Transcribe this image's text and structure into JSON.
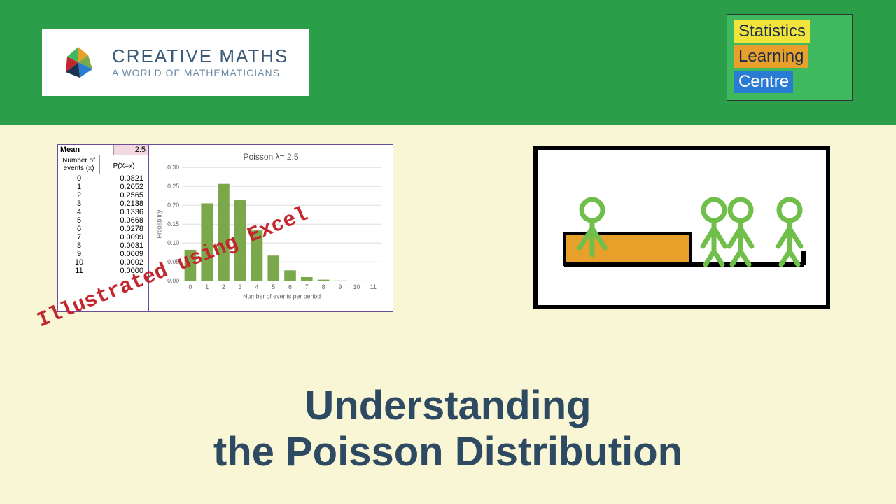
{
  "colors": {
    "header_bg": "#2b9e4a",
    "body_bg": "#f8f6d4",
    "slc_bg": "#3fb95e",
    "slc_statistics_bg": "#f2e33a",
    "slc_learning_bg": "#e9a02a",
    "slc_centre_bg": "#2a7bd4",
    "slc_text": "#18324f",
    "logo_title": "#3a5a78",
    "logo_sub": "#6a8aa6",
    "excel_overlay": "#c1272d",
    "title_color": "#2e4a63",
    "bar_color": "#7aa84a",
    "mean_val_bg": "#f3d9e0",
    "illus_person": "#6fbf4a",
    "illus_desk": "#e9a02a"
  },
  "logo": {
    "title": "CREATIVE MATHS",
    "subtitle": "A WORLD OF MATHEMATICIANS"
  },
  "slc": {
    "line1": "Statistics",
    "line2": "Learning",
    "line3": "Centre"
  },
  "excel": {
    "mean_label": "Mean",
    "mean_value": "2.5",
    "col1_header": "Number of events (x)",
    "col2_header": "P(X=x)",
    "rows": [
      {
        "x": "0",
        "p": "0.0821"
      },
      {
        "x": "1",
        "p": "0.2052"
      },
      {
        "x": "2",
        "p": "0.2565"
      },
      {
        "x": "3",
        "p": "0.2138"
      },
      {
        "x": "4",
        "p": "0.1336"
      },
      {
        "x": "5",
        "p": "0.0668"
      },
      {
        "x": "6",
        "p": "0.0278"
      },
      {
        "x": "7",
        "p": "0.0099"
      },
      {
        "x": "8",
        "p": "0.0031"
      },
      {
        "x": "9",
        "p": "0.0009"
      },
      {
        "x": "10",
        "p": "0.0002"
      },
      {
        "x": "11",
        "p": "0.0000"
      }
    ]
  },
  "chart": {
    "title": "Poisson λ= 2.5",
    "ylabel": "Probability",
    "xlabel": "Number of events per period",
    "ylim_max": 0.3,
    "ytick_step": 0.05,
    "categories": [
      "0",
      "1",
      "2",
      "3",
      "4",
      "5",
      "6",
      "7",
      "8",
      "9",
      "10",
      "11"
    ],
    "values": [
      0.0821,
      0.2052,
      0.2565,
      0.2138,
      0.1336,
      0.0668,
      0.0278,
      0.0099,
      0.0031,
      0.0009,
      0.0002,
      0.0
    ]
  },
  "overlay_text": "Illustrated using Excel",
  "main_title_line1": "Understanding",
  "main_title_line2": "the Poisson Distribution"
}
